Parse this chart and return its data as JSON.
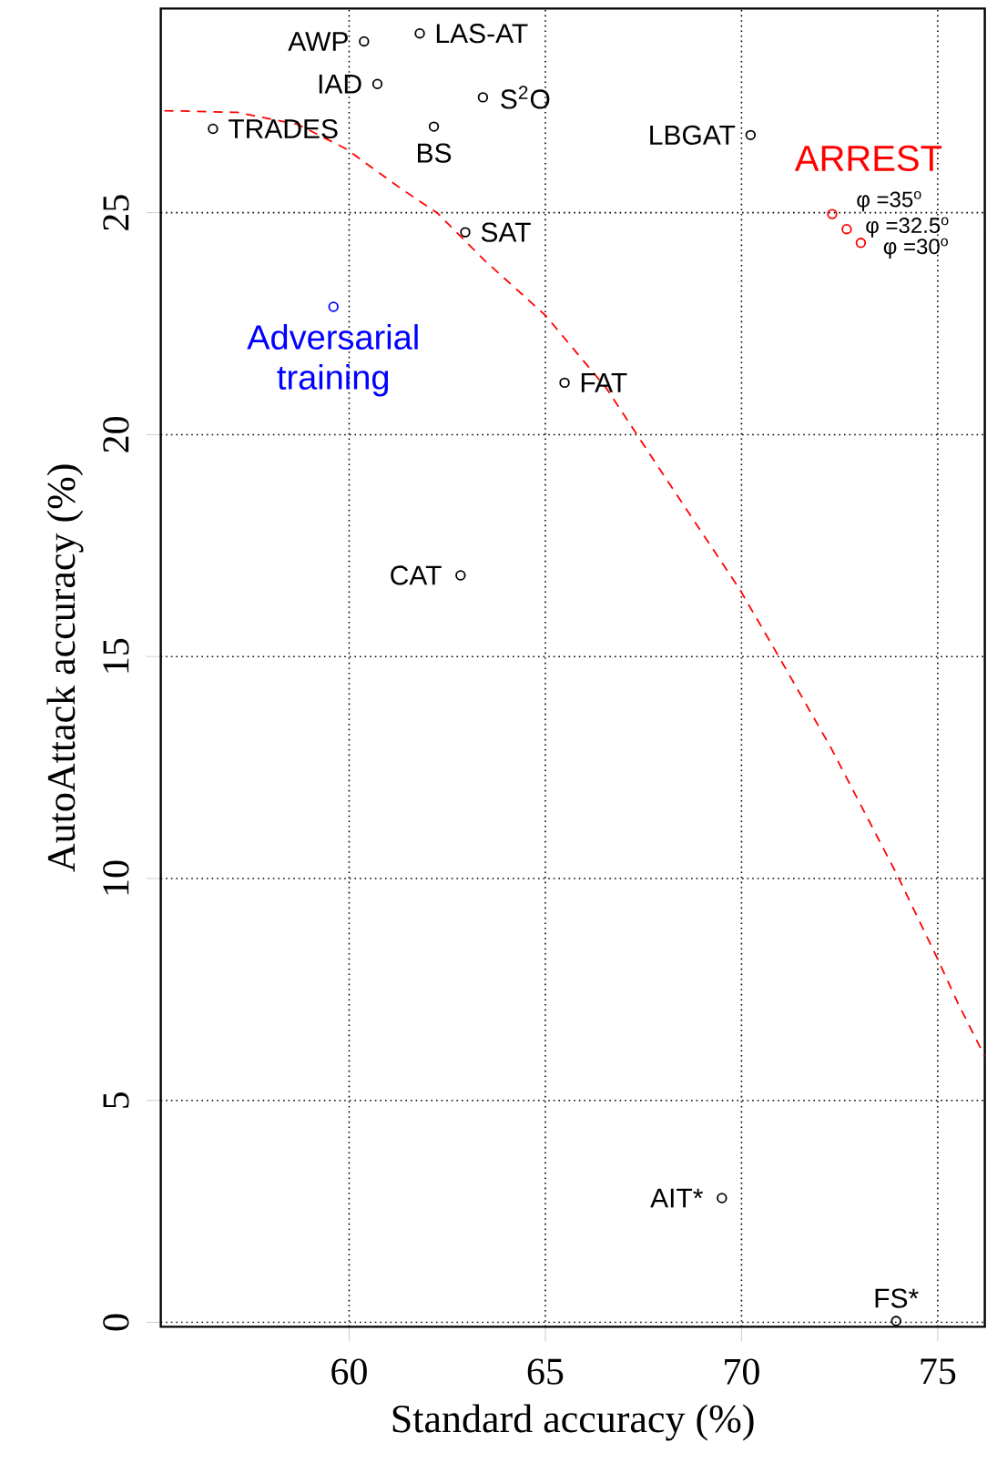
{
  "chart_data": {
    "type": "scatter",
    "xlabel": "Standard accuracy (%)",
    "ylabel": "AutoAttack accuracy (%)",
    "xlim": [
      55.2,
      76.2
    ],
    "ylim": [
      -0.1,
      29.6
    ],
    "xticks": [
      60,
      65,
      70,
      75
    ],
    "yticks": [
      0,
      5,
      10,
      15,
      20,
      25
    ],
    "grid": true,
    "marker": "circle",
    "series": [
      {
        "color": "#000000",
        "x": [
          60.38,
          61.8,
          60.72,
          63.41,
          56.53,
          62.16,
          70.23,
          62.96,
          65.49,
          62.84,
          69.5,
          73.94
        ],
        "values": [
          28.86,
          29.04,
          27.9,
          27.6,
          26.89,
          26.94,
          26.75,
          24.56,
          21.17,
          16.83,
          2.8,
          0.03
        ]
      },
      {
        "name": "Adversarial training",
        "color": "#0000ff",
        "x": [
          59.6
        ],
        "values": [
          22.88
        ]
      },
      {
        "name": "ARREST",
        "color": "#ff0000",
        "x": [
          72.31,
          72.68,
          73.04
        ],
        "values": [
          24.97,
          24.63,
          24.32
        ]
      },
      {
        "type": "line",
        "color": "#ff0000",
        "line_style": "dashed",
        "marker": "none",
        "x": [
          55.29,
          57.15,
          58.69,
          59.92,
          61.31,
          62.24,
          63.47,
          65.01,
          66.56,
          67.94,
          69.95,
          70.95,
          72.27,
          73.96,
          74.97,
          75.51,
          76.2
        ],
        "values": [
          27.3,
          27.26,
          26.99,
          26.44,
          25.55,
          25.0,
          23.91,
          22.68,
          21.04,
          19.19,
          16.52,
          15.0,
          12.96,
          10.09,
          8.24,
          7.2,
          5.99
        ]
      }
    ],
    "annotations": [
      {
        "text": "AWP",
        "x": 60.38,
        "y": 28.86
      },
      {
        "text": "LAS-AT",
        "x": 61.8,
        "y": 29.04
      },
      {
        "text": "IAD",
        "x": 60.72,
        "y": 27.9
      },
      {
        "text": "S$^{2}$O",
        "x": 63.41,
        "y": 27.6
      },
      {
        "text": "TRADES",
        "x": 56.53,
        "y": 26.89
      },
      {
        "text": "BS",
        "x": 62.16,
        "y": 26.94
      },
      {
        "text": "LBGAT",
        "x": 70.23,
        "y": 26.75
      },
      {
        "text": "SAT",
        "x": 62.96,
        "y": 24.56
      },
      {
        "text": "FAT",
        "x": 65.49,
        "y": 21.17
      },
      {
        "text": "CAT",
        "x": 62.84,
        "y": 16.83
      },
      {
        "text": "AIT*",
        "x": 69.5,
        "y": 2.8
      },
      {
        "text": "FS*",
        "x": 73.94,
        "y": 0.03
      },
      {
        "text": "φ =35$^{o}$",
        "x": 72.31,
        "y": 24.97
      },
      {
        "text": "φ =32.5$^{o}$",
        "x": 72.68,
        "y": 24.63
      },
      {
        "text": "φ =30$^{o}$",
        "x": 73.04,
        "y": 24.32
      }
    ]
  }
}
